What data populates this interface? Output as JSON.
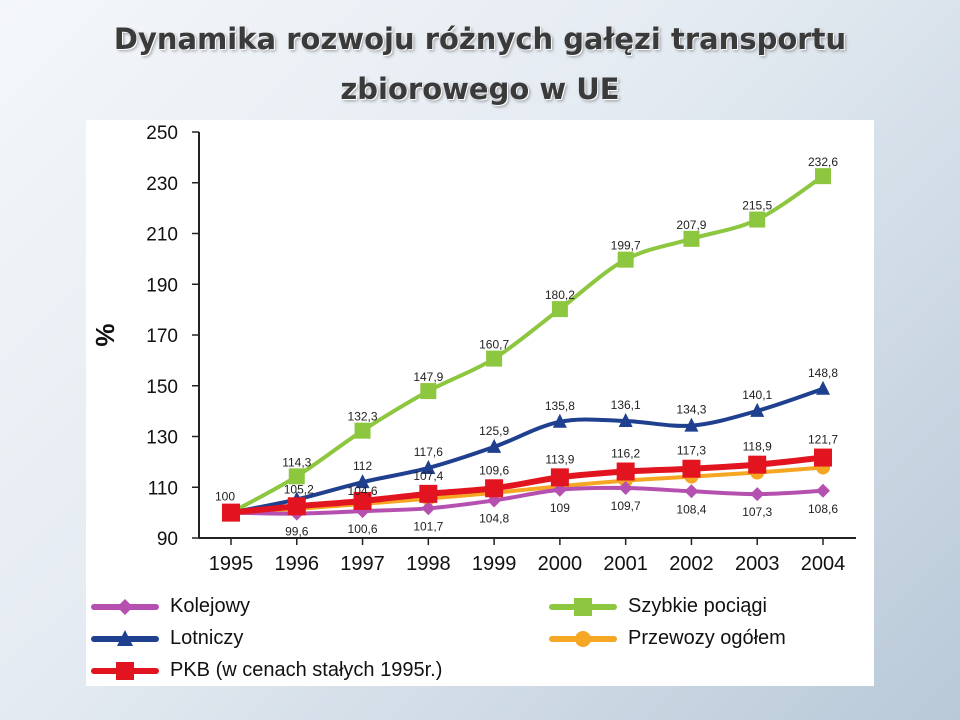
{
  "title": {
    "line1": "Dynamika rozwoju różnych gałęzi transportu",
    "line2": "zbiorowego w UE"
  },
  "chart_data": {
    "type": "line",
    "ylabel": "%",
    "ylim": [
      90,
      250
    ],
    "yticks": [
      "90",
      "110",
      "130",
      "150",
      "170",
      "190",
      "210",
      "230",
      "250"
    ],
    "categories": [
      "1995",
      "1996",
      "1997",
      "1998",
      "1999",
      "2000",
      "2001",
      "2002",
      "2003",
      "2004"
    ],
    "legend_position": "bottom",
    "series": [
      {
        "name": "Szybkie pociągi",
        "color": "#8dc63f",
        "marker": "square",
        "values": [
          100,
          114.3,
          132.3,
          147.9,
          160.7,
          180.2,
          199.7,
          207.9,
          215.5,
          232.6
        ],
        "labels": [
          "100",
          "114,3",
          "132,3",
          "147,9",
          "160,7",
          "180,2",
          "199,7",
          "207,9",
          "215,5",
          "232,6"
        ]
      },
      {
        "name": "Lotniczy",
        "color": "#1f3f8f",
        "marker": "triangle",
        "values": [
          100,
          105.2,
          112,
          117.6,
          125.9,
          135.8,
          136.1,
          134.3,
          140.1,
          148.8
        ],
        "labels": [
          "",
          "105,2",
          "112",
          "117,6",
          "125,9",
          "135,8",
          "136,1",
          "134,3",
          "140,1",
          "148,8"
        ]
      },
      {
        "name": "PKB (w cenach stałych 1995r.)",
        "color": "#e2141f",
        "marker": "square",
        "values": [
          100,
          102.5,
          104.6,
          107.4,
          109.6,
          113.9,
          116.2,
          117.3,
          118.9,
          121.7
        ],
        "labels": [
          "",
          "",
          "104,6",
          "107,4",
          "109,6",
          "113,9",
          "116,2",
          "117,3",
          "118,9",
          "121,7"
        ]
      },
      {
        "name": "Przewozy ogółem",
        "color": "#f5a623",
        "marker": "circle",
        "values": [
          100,
          101.5,
          103.4,
          105.5,
          107.8,
          110.4,
          112.6,
          114.2,
          115.8,
          117.8
        ],
        "labels": []
      },
      {
        "name": "Kolejowy",
        "color": "#b650b0",
        "marker": "diamond",
        "values": [
          100,
          99.6,
          100.6,
          101.7,
          104.8,
          109,
          109.7,
          108.4,
          107.3,
          108.6
        ],
        "labels": [
          "",
          "99,6",
          "100,6",
          "101,7",
          "104,8",
          "109",
          "109,7",
          "108,4",
          "107,3",
          "108,6"
        ]
      }
    ],
    "legend_order": [
      "Kolejowy",
      "Szybkie pociągi",
      "Lotniczy",
      "Przewozy ogółem",
      "PKB (w cenach stałych 1995r.)"
    ]
  }
}
